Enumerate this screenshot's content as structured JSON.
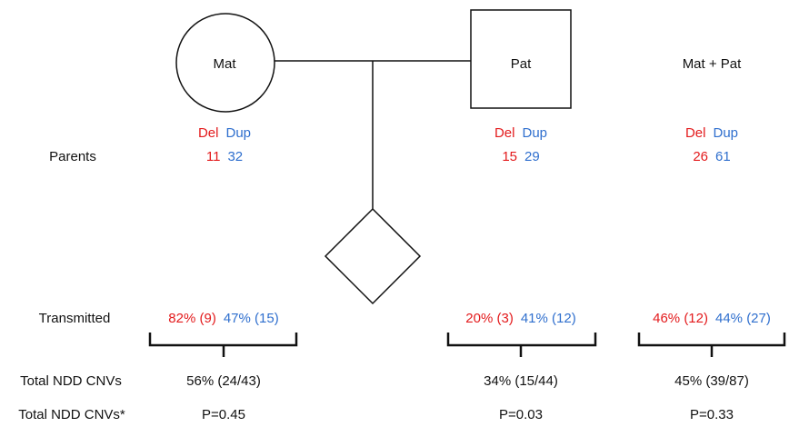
{
  "legend": {
    "del": "Del",
    "dup": "Dup"
  },
  "row_labels": {
    "parents": "Parents",
    "transmitted": "Transmitted",
    "total": "Total NDD CNVs",
    "total_star": "Total NDD CNVs*"
  },
  "columns": [
    {
      "header": "Mat",
      "parents_del": "11",
      "parents_dup": "32",
      "trans_del": "82% (9)",
      "trans_dup": "47% (15)",
      "total": "56% (24/43)",
      "pvalue": "P=0.45"
    },
    {
      "header": "Pat",
      "parents_del": "15",
      "parents_dup": "29",
      "trans_del": "20% (3)",
      "trans_dup": "41% (12)",
      "total": "34% (15/44)",
      "pvalue": "P=0.03"
    },
    {
      "header": "Mat + Pat",
      "parents_del": "26",
      "parents_dup": "61",
      "trans_del": "46% (12)",
      "trans_dup": "44% (27)",
      "total": "45% (39/87)",
      "pvalue": "P=0.33"
    }
  ],
  "colors": {
    "del": "#e31a1c",
    "dup": "#2f6fce",
    "line": "#111111"
  }
}
